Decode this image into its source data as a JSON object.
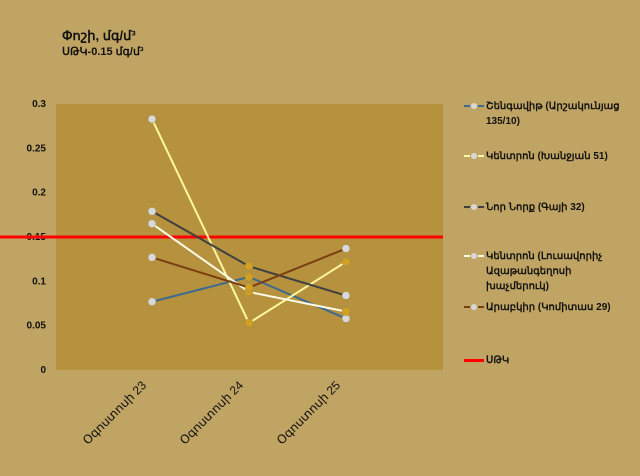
{
  "title": "Փոշի, մգ/մ³",
  "subtitle": "ՍԹԿ-0.15 մգ/մ³",
  "chart_data": {
    "type": "line",
    "categories": [
      "Օգոստոսի 23",
      "Օգոստոսի 24",
      "Օգոստոսի 25"
    ],
    "ylim": [
      0,
      0.3
    ],
    "yticks": [
      "0",
      "0.05",
      "0.1",
      "0.15",
      "0.2",
      "0.25",
      "0.3"
    ],
    "series": [
      {
        "name": "Շենգավիթ (Արշակունյաց 135/10)",
        "color": "#3d6a8e",
        "dash": true,
        "values": [
          0.077,
          0.105,
          0.058
        ]
      },
      {
        "name": "Կենտրոն (Խանջյան 51)",
        "color": "#fff8a0",
        "dash": true,
        "values": [
          0.283,
          0.053,
          0.122
        ]
      },
      {
        "name": "Նոր Նորք (Գայի 32)",
        "color": "#404040",
        "dash": true,
        "values": [
          0.179,
          0.117,
          0.084
        ]
      },
      {
        "name": "Կենտրոն (Լուսավորիչ Ազաթանգեղոսի խաչմերուկ)",
        "color": "#fffbe6",
        "dash": true,
        "values": [
          0.165,
          0.088,
          0.066
        ]
      },
      {
        "name": "Արաբկիր (Կոմիտաս 29)",
        "color": "#7a3e12",
        "dash": true,
        "values": [
          0.127,
          0.093,
          0.137
        ]
      }
    ],
    "reference_line": {
      "name": "ՍԹԿ",
      "value": 0.15,
      "color": "#ff0000"
    },
    "grid": false,
    "legend_position": "right"
  }
}
